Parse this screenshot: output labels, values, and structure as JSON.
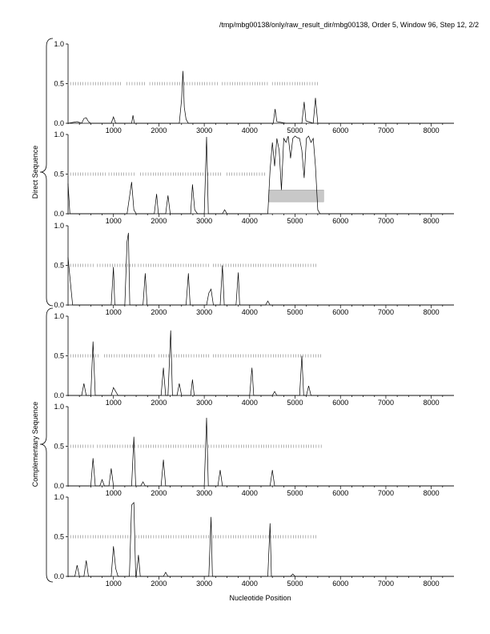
{
  "title": "/tmp/mbg00138/only/raw_result_dir/mbg00138, Order 5, Window 96, Step 12, 2/2",
  "xlabel": "Nucleotide Position",
  "group_labels": {
    "direct": "Direct Sequence",
    "complementary": "Complementary Sequence"
  },
  "chart_data": [
    {
      "type": "line",
      "strand": "direct",
      "frame": 1,
      "xlim": [
        0,
        8500
      ],
      "ylim": [
        0,
        1
      ],
      "xticks": [
        "1000",
        "2000",
        "3000",
        "4000",
        "5000",
        "6000",
        "7000",
        "8000"
      ],
      "yticks": [
        "0.0",
        "0.5",
        "1.0"
      ],
      "coding_bars": [
        [
          0,
          1200
        ],
        [
          1300,
          1700
        ],
        [
          1800,
          3300
        ],
        [
          3400,
          4400
        ],
        [
          4500,
          5500
        ]
      ],
      "highlight": null,
      "series": [
        {
          "points": [
            [
              0,
              0
            ],
            [
              200,
              0.02
            ],
            [
              300,
              0
            ],
            [
              350,
              0.06
            ],
            [
              400,
              0.07
            ],
            [
              450,
              0.02
            ],
            [
              500,
              0
            ],
            [
              950,
              0
            ],
            [
              1000,
              0.08
            ],
            [
              1050,
              0
            ],
            [
              1400,
              0
            ],
            [
              1430,
              0.1
            ],
            [
              1460,
              0
            ],
            [
              2450,
              0
            ],
            [
              2500,
              0.3
            ],
            [
              2530,
              0.66
            ],
            [
              2560,
              0.2
            ],
            [
              2600,
              0.05
            ],
            [
              2650,
              0
            ],
            [
              4520,
              0
            ],
            [
              4560,
              0.18
            ],
            [
              4600,
              0.02
            ],
            [
              4800,
              0
            ],
            [
              5150,
              0
            ],
            [
              5200,
              0.27
            ],
            [
              5240,
              0.03
            ],
            [
              5400,
              0
            ],
            [
              5450,
              0.32
            ],
            [
              5500,
              0
            ],
            [
              8500,
              0
            ]
          ]
        }
      ]
    },
    {
      "type": "line",
      "strand": "direct",
      "frame": 2,
      "xlim": [
        0,
        8500
      ],
      "ylim": [
        0,
        1
      ],
      "xticks": [
        "1000",
        "2000",
        "3000",
        "4000",
        "5000",
        "6000",
        "7000",
        "8000"
      ],
      "yticks": [
        "0.0",
        "0.5",
        "1.0"
      ],
      "coding_bars": [
        [
          0,
          850
        ],
        [
          900,
          1500
        ],
        [
          1600,
          3400
        ],
        [
          3500,
          4350
        ]
      ],
      "highlight": {
        "x_start": 4420,
        "x_end": 5630,
        "y_low": 0.15,
        "y_high": 0.3
      },
      "series": [
        {
          "points": [
            [
              0,
              0.38
            ],
            [
              40,
              0
            ],
            [
              1300,
              0
            ],
            [
              1400,
              0.4
            ],
            [
              1450,
              0.05
            ],
            [
              1500,
              0
            ],
            [
              1900,
              0
            ],
            [
              1950,
              0.25
            ],
            [
              1990,
              0
            ],
            [
              2150,
              0
            ],
            [
              2200,
              0.23
            ],
            [
              2250,
              0
            ],
            [
              2700,
              0
            ],
            [
              2740,
              0.37
            ],
            [
              2790,
              0.05
            ],
            [
              2850,
              0
            ],
            [
              3000,
              0
            ],
            [
              3050,
              0.97
            ],
            [
              3090,
              0
            ],
            [
              3400,
              0
            ],
            [
              3450,
              0.05
            ],
            [
              3500,
              0
            ],
            [
              4400,
              0
            ],
            [
              4450,
              0.55
            ],
            [
              4500,
              0.9
            ],
            [
              4550,
              0.6
            ],
            [
              4600,
              0.95
            ],
            [
              4650,
              0.8
            ],
            [
              4700,
              0.3
            ],
            [
              4750,
              0.95
            ],
            [
              4800,
              0.9
            ],
            [
              4850,
              0.98
            ],
            [
              4900,
              0.7
            ],
            [
              4950,
              0.95
            ],
            [
              5000,
              0.98
            ],
            [
              5050,
              0.96
            ],
            [
              5100,
              0.95
            ],
            [
              5150,
              0.8
            ],
            [
              5200,
              0.45
            ],
            [
              5250,
              0.95
            ],
            [
              5300,
              0.98
            ],
            [
              5350,
              0.9
            ],
            [
              5400,
              0.95
            ],
            [
              5450,
              0.6
            ],
            [
              5500,
              0.05
            ],
            [
              5550,
              0
            ],
            [
              8500,
              0
            ]
          ]
        }
      ]
    },
    {
      "type": "line",
      "strand": "direct",
      "frame": 3,
      "xlim": [
        0,
        8500
      ],
      "ylim": [
        0,
        1
      ],
      "xticks": [
        "1000",
        "2000",
        "3000",
        "4000",
        "5000",
        "6000",
        "7000",
        "8000"
      ],
      "yticks": [
        "0.0",
        "0.5",
        "1.0"
      ],
      "coding_bars": [
        [
          0,
          600
        ],
        [
          650,
          1500
        ],
        [
          1550,
          3100
        ],
        [
          3200,
          5500
        ]
      ],
      "highlight": null,
      "series": [
        {
          "points": [
            [
              0,
              0.6
            ],
            [
              50,
              0.3
            ],
            [
              100,
              0
            ],
            [
              950,
              0
            ],
            [
              1000,
              0.48
            ],
            [
              1030,
              0
            ],
            [
              1250,
              0
            ],
            [
              1300,
              0.8
            ],
            [
              1330,
              0.91
            ],
            [
              1360,
              0
            ],
            [
              1650,
              0
            ],
            [
              1700,
              0.4
            ],
            [
              1740,
              0
            ],
            [
              2600,
              0
            ],
            [
              2650,
              0.4
            ],
            [
              2690,
              0
            ],
            [
              3050,
              0
            ],
            [
              3100,
              0.15
            ],
            [
              3150,
              0.2
            ],
            [
              3200,
              0
            ],
            [
              3350,
              0
            ],
            [
              3400,
              0.5
            ],
            [
              3440,
              0
            ],
            [
              3700,
              0
            ],
            [
              3750,
              0.41
            ],
            [
              3780,
              0
            ],
            [
              4350,
              0
            ],
            [
              4400,
              0.05
            ],
            [
              4450,
              0
            ],
            [
              8500,
              0
            ]
          ]
        }
      ]
    },
    {
      "type": "line",
      "strand": "complementary",
      "frame": 1,
      "xlim": [
        0,
        8500
      ],
      "ylim": [
        0,
        1
      ],
      "xticks": [
        "1000",
        "2000",
        "3000",
        "4000",
        "5000",
        "6000",
        "7000",
        "8000"
      ],
      "yticks": [
        "0.0",
        "0.5",
        "1.0"
      ],
      "coding_bars": [
        [
          0,
          700
        ],
        [
          800,
          1900
        ],
        [
          2000,
          3100
        ],
        [
          3200,
          5600
        ]
      ],
      "highlight": null,
      "series": [
        {
          "points": [
            [
              0,
              0
            ],
            [
              300,
              0
            ],
            [
              350,
              0.15
            ],
            [
              400,
              0
            ],
            [
              500,
              0
            ],
            [
              550,
              0.68
            ],
            [
              600,
              0
            ],
            [
              950,
              0
            ],
            [
              1000,
              0.1
            ],
            [
              1050,
              0.05
            ],
            [
              1100,
              0
            ],
            [
              2050,
              0
            ],
            [
              2100,
              0.35
            ],
            [
              2150,
              0
            ],
            [
              2200,
              0
            ],
            [
              2260,
              0.82
            ],
            [
              2300,
              0
            ],
            [
              2400,
              0
            ],
            [
              2450,
              0.15
            ],
            [
              2500,
              0
            ],
            [
              2700,
              0
            ],
            [
              2740,
              0.2
            ],
            [
              2780,
              0
            ],
            [
              4000,
              0
            ],
            [
              4050,
              0.35
            ],
            [
              4090,
              0
            ],
            [
              4500,
              0
            ],
            [
              4550,
              0.05
            ],
            [
              4600,
              0
            ],
            [
              5100,
              0
            ],
            [
              5150,
              0.5
            ],
            [
              5190,
              0
            ],
            [
              5250,
              0
            ],
            [
              5300,
              0.12
            ],
            [
              5350,
              0
            ],
            [
              8500,
              0
            ]
          ]
        }
      ]
    },
    {
      "type": "line",
      "strand": "complementary",
      "frame": 2,
      "xlim": [
        0,
        8500
      ],
      "ylim": [
        0,
        1
      ],
      "xticks": [
        "1000",
        "2000",
        "3000",
        "4000",
        "5000",
        "6000",
        "7000",
        "8000"
      ],
      "yticks": [
        "0.0",
        "0.5",
        "1.0"
      ],
      "coding_bars": [
        [
          0,
          600
        ],
        [
          650,
          1500
        ],
        [
          1550,
          3000
        ],
        [
          3100,
          5600
        ]
      ],
      "highlight": null,
      "series": [
        {
          "points": [
            [
              0,
              0
            ],
            [
              500,
              0
            ],
            [
              550,
              0.35
            ],
            [
              600,
              0
            ],
            [
              700,
              0
            ],
            [
              750,
              0.08
            ],
            [
              800,
              0
            ],
            [
              900,
              0
            ],
            [
              950,
              0.22
            ],
            [
              1000,
              0
            ],
            [
              1400,
              0
            ],
            [
              1450,
              0.62
            ],
            [
              1490,
              0
            ],
            [
              1600,
              0
            ],
            [
              1650,
              0.05
            ],
            [
              1700,
              0
            ],
            [
              2050,
              0
            ],
            [
              2100,
              0.33
            ],
            [
              2150,
              0
            ],
            [
              3000,
              0
            ],
            [
              3050,
              0.86
            ],
            [
              3090,
              0
            ],
            [
              3300,
              0
            ],
            [
              3350,
              0.2
            ],
            [
              3400,
              0
            ],
            [
              4450,
              0
            ],
            [
              4500,
              0.2
            ],
            [
              4550,
              0
            ],
            [
              8500,
              0
            ]
          ]
        }
      ]
    },
    {
      "type": "line",
      "strand": "complementary",
      "frame": 3,
      "xlim": [
        0,
        8500
      ],
      "ylim": [
        0,
        1
      ],
      "xticks": [
        "1000",
        "2000",
        "3000",
        "4000",
        "5000",
        "6000",
        "7000",
        "8000"
      ],
      "yticks": [
        "0.0",
        "0.5",
        "1.0"
      ],
      "coding_bars": [
        [
          0,
          1400
        ],
        [
          1500,
          3100
        ],
        [
          3200,
          5500
        ]
      ],
      "highlight": null,
      "series": [
        {
          "points": [
            [
              0,
              0
            ],
            [
              150,
              0
            ],
            [
              200,
              0.14
            ],
            [
              250,
              0
            ],
            [
              350,
              0
            ],
            [
              400,
              0.2
            ],
            [
              450,
              0
            ],
            [
              950,
              0
            ],
            [
              1000,
              0.38
            ],
            [
              1050,
              0.1
            ],
            [
              1100,
              0
            ],
            [
              1350,
              0
            ],
            [
              1400,
              0.9
            ],
            [
              1450,
              0.93
            ],
            [
              1490,
              0
            ],
            [
              1500,
              0
            ],
            [
              1550,
              0.27
            ],
            [
              1590,
              0
            ],
            [
              2100,
              0
            ],
            [
              2150,
              0.05
            ],
            [
              2200,
              0
            ],
            [
              3100,
              0
            ],
            [
              3150,
              0.75
            ],
            [
              3180,
              0
            ],
            [
              4400,
              0
            ],
            [
              4450,
              0.67
            ],
            [
              4480,
              0
            ],
            [
              4900,
              0
            ],
            [
              4950,
              0.03
            ],
            [
              5000,
              0
            ],
            [
              8500,
              0
            ]
          ]
        }
      ]
    }
  ]
}
